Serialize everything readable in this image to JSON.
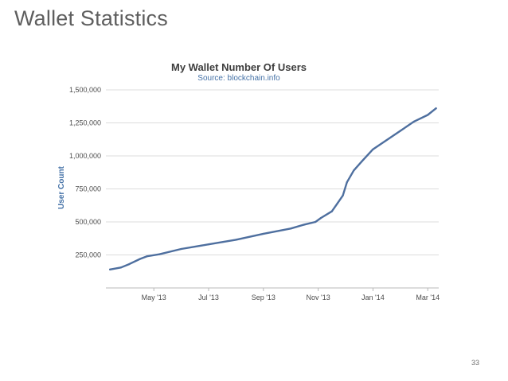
{
  "slide": {
    "title": "Wallet Statistics",
    "page_number": "33"
  },
  "colors": {
    "line": "#4e6f9f",
    "grid": "#dcdcdc",
    "axis": "#b8b8b8",
    "subtitle": "#4572a7"
  },
  "chart_data": {
    "type": "line",
    "title": "My Wallet Number Of Users",
    "subtitle": "Source: blockchain.info",
    "xlabel": "",
    "ylabel": "User Count",
    "ylim": [
      0,
      1500000
    ],
    "y_ticks": [
      250000,
      500000,
      750000,
      1000000,
      1250000,
      1500000
    ],
    "y_tick_labels": [
      "250,000",
      "500,000",
      "750,000",
      "1,000,000",
      "1,250,000",
      "1,500,000"
    ],
    "x_ticks": [
      1.0,
      3.0,
      5.0,
      7.0,
      9.0,
      11.0
    ],
    "x_tick_labels": [
      "May '13",
      "Jul '13",
      "Sep '13",
      "Nov '13",
      "Jan '14",
      "Mar '14"
    ],
    "xlim": [
      -0.75,
      11.4
    ],
    "grid": true,
    "series": [
      {
        "name": "User Count",
        "x": [
          -0.6,
          -0.2,
          0.1,
          0.5,
          0.75,
          1.2,
          2.0,
          3.0,
          4.0,
          5.0,
          6.0,
          6.5,
          6.9,
          7.1,
          7.5,
          7.7,
          7.9,
          8.05,
          8.3,
          8.6,
          9.0,
          9.5,
          10.0,
          10.5,
          11.0,
          11.3
        ],
        "values": [
          140000,
          155000,
          180000,
          220000,
          240000,
          255000,
          295000,
          330000,
          365000,
          410000,
          450000,
          480000,
          500000,
          530000,
          580000,
          640000,
          700000,
          800000,
          890000,
          960000,
          1050000,
          1120000,
          1190000,
          1260000,
          1310000,
          1360000
        ]
      }
    ]
  }
}
